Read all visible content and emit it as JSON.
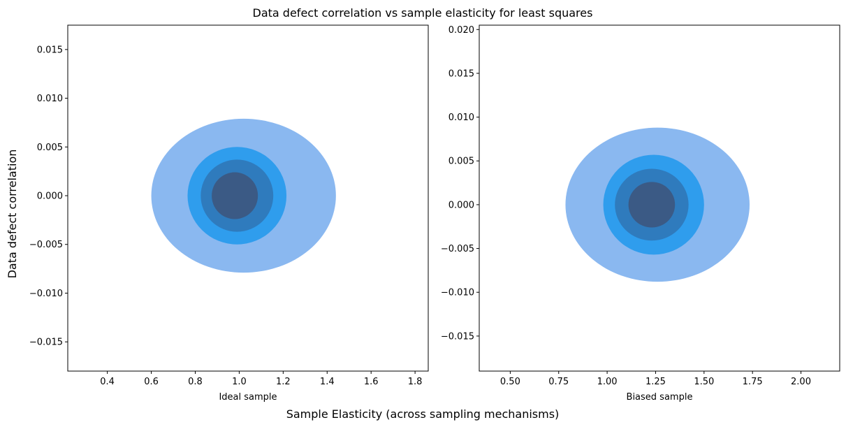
{
  "title": "Data defect correlation vs sample elasticity for least squares",
  "shared_xlabel": "Sample Elasticity (across sampling mechanisms)",
  "shared_ylabel": "Data defect correlation",
  "colors": [
    "#8ab8f0",
    "#2f9ded",
    "#2f7bbd",
    "#3b5a85"
  ],
  "chart_data": [
    {
      "type": "kde-contour",
      "xlabel": "Ideal sample",
      "xlim": [
        0.22,
        1.86
      ],
      "ylim": [
        -0.018,
        0.0175
      ],
      "xticks": [
        0.4,
        0.6,
        0.8,
        1.0,
        1.2,
        1.4,
        1.6,
        1.8
      ],
      "yticks": [
        -0.015,
        -0.01,
        -0.005,
        0.0,
        0.005,
        0.01,
        0.015
      ],
      "xtick_labels": [
        "0.4",
        "0.6",
        "0.8",
        "1.0",
        "1.2",
        "1.4",
        "1.6",
        "1.8"
      ],
      "ytick_labels": [
        "−0.015",
        "−0.010",
        "−0.005",
        "0.000",
        "0.005",
        "0.010",
        "0.015"
      ],
      "levels": [
        {
          "cx": 1.02,
          "cy": 0.0,
          "rx": 0.42,
          "ry": 0.0079
        },
        {
          "cx": 0.99,
          "cy": 0.0,
          "rx": 0.225,
          "ry": 0.005
        },
        {
          "cx": 0.99,
          "cy": 0.0,
          "rx": 0.165,
          "ry": 0.0037
        },
        {
          "cx": 0.98,
          "cy": 0.0,
          "rx": 0.105,
          "ry": 0.0024
        }
      ]
    },
    {
      "type": "kde-contour",
      "xlabel": "Biased sample",
      "xlim": [
        0.34,
        2.2
      ],
      "ylim": [
        -0.019,
        0.0205
      ],
      "xticks": [
        0.5,
        0.75,
        1.0,
        1.25,
        1.5,
        1.75,
        2.0
      ],
      "yticks": [
        -0.015,
        -0.01,
        -0.005,
        0.0,
        0.005,
        0.01,
        0.015,
        0.02
      ],
      "xtick_labels": [
        "0.50",
        "0.75",
        "1.00",
        "1.25",
        "1.50",
        "1.75",
        "2.00"
      ],
      "ytick_labels": [
        "−0.015",
        "−0.010",
        "−0.005",
        "0.000",
        "0.005",
        "0.010",
        "0.015",
        "0.020"
      ],
      "levels": [
        {
          "cx": 1.26,
          "cy": 0.0,
          "rx": 0.475,
          "ry": 0.0088
        },
        {
          "cx": 1.24,
          "cy": 0.0,
          "rx": 0.26,
          "ry": 0.0057
        },
        {
          "cx": 1.23,
          "cy": 0.0,
          "rx": 0.19,
          "ry": 0.0041
        },
        {
          "cx": 1.23,
          "cy": 0.0,
          "rx": 0.12,
          "ry": 0.0026
        }
      ]
    }
  ]
}
